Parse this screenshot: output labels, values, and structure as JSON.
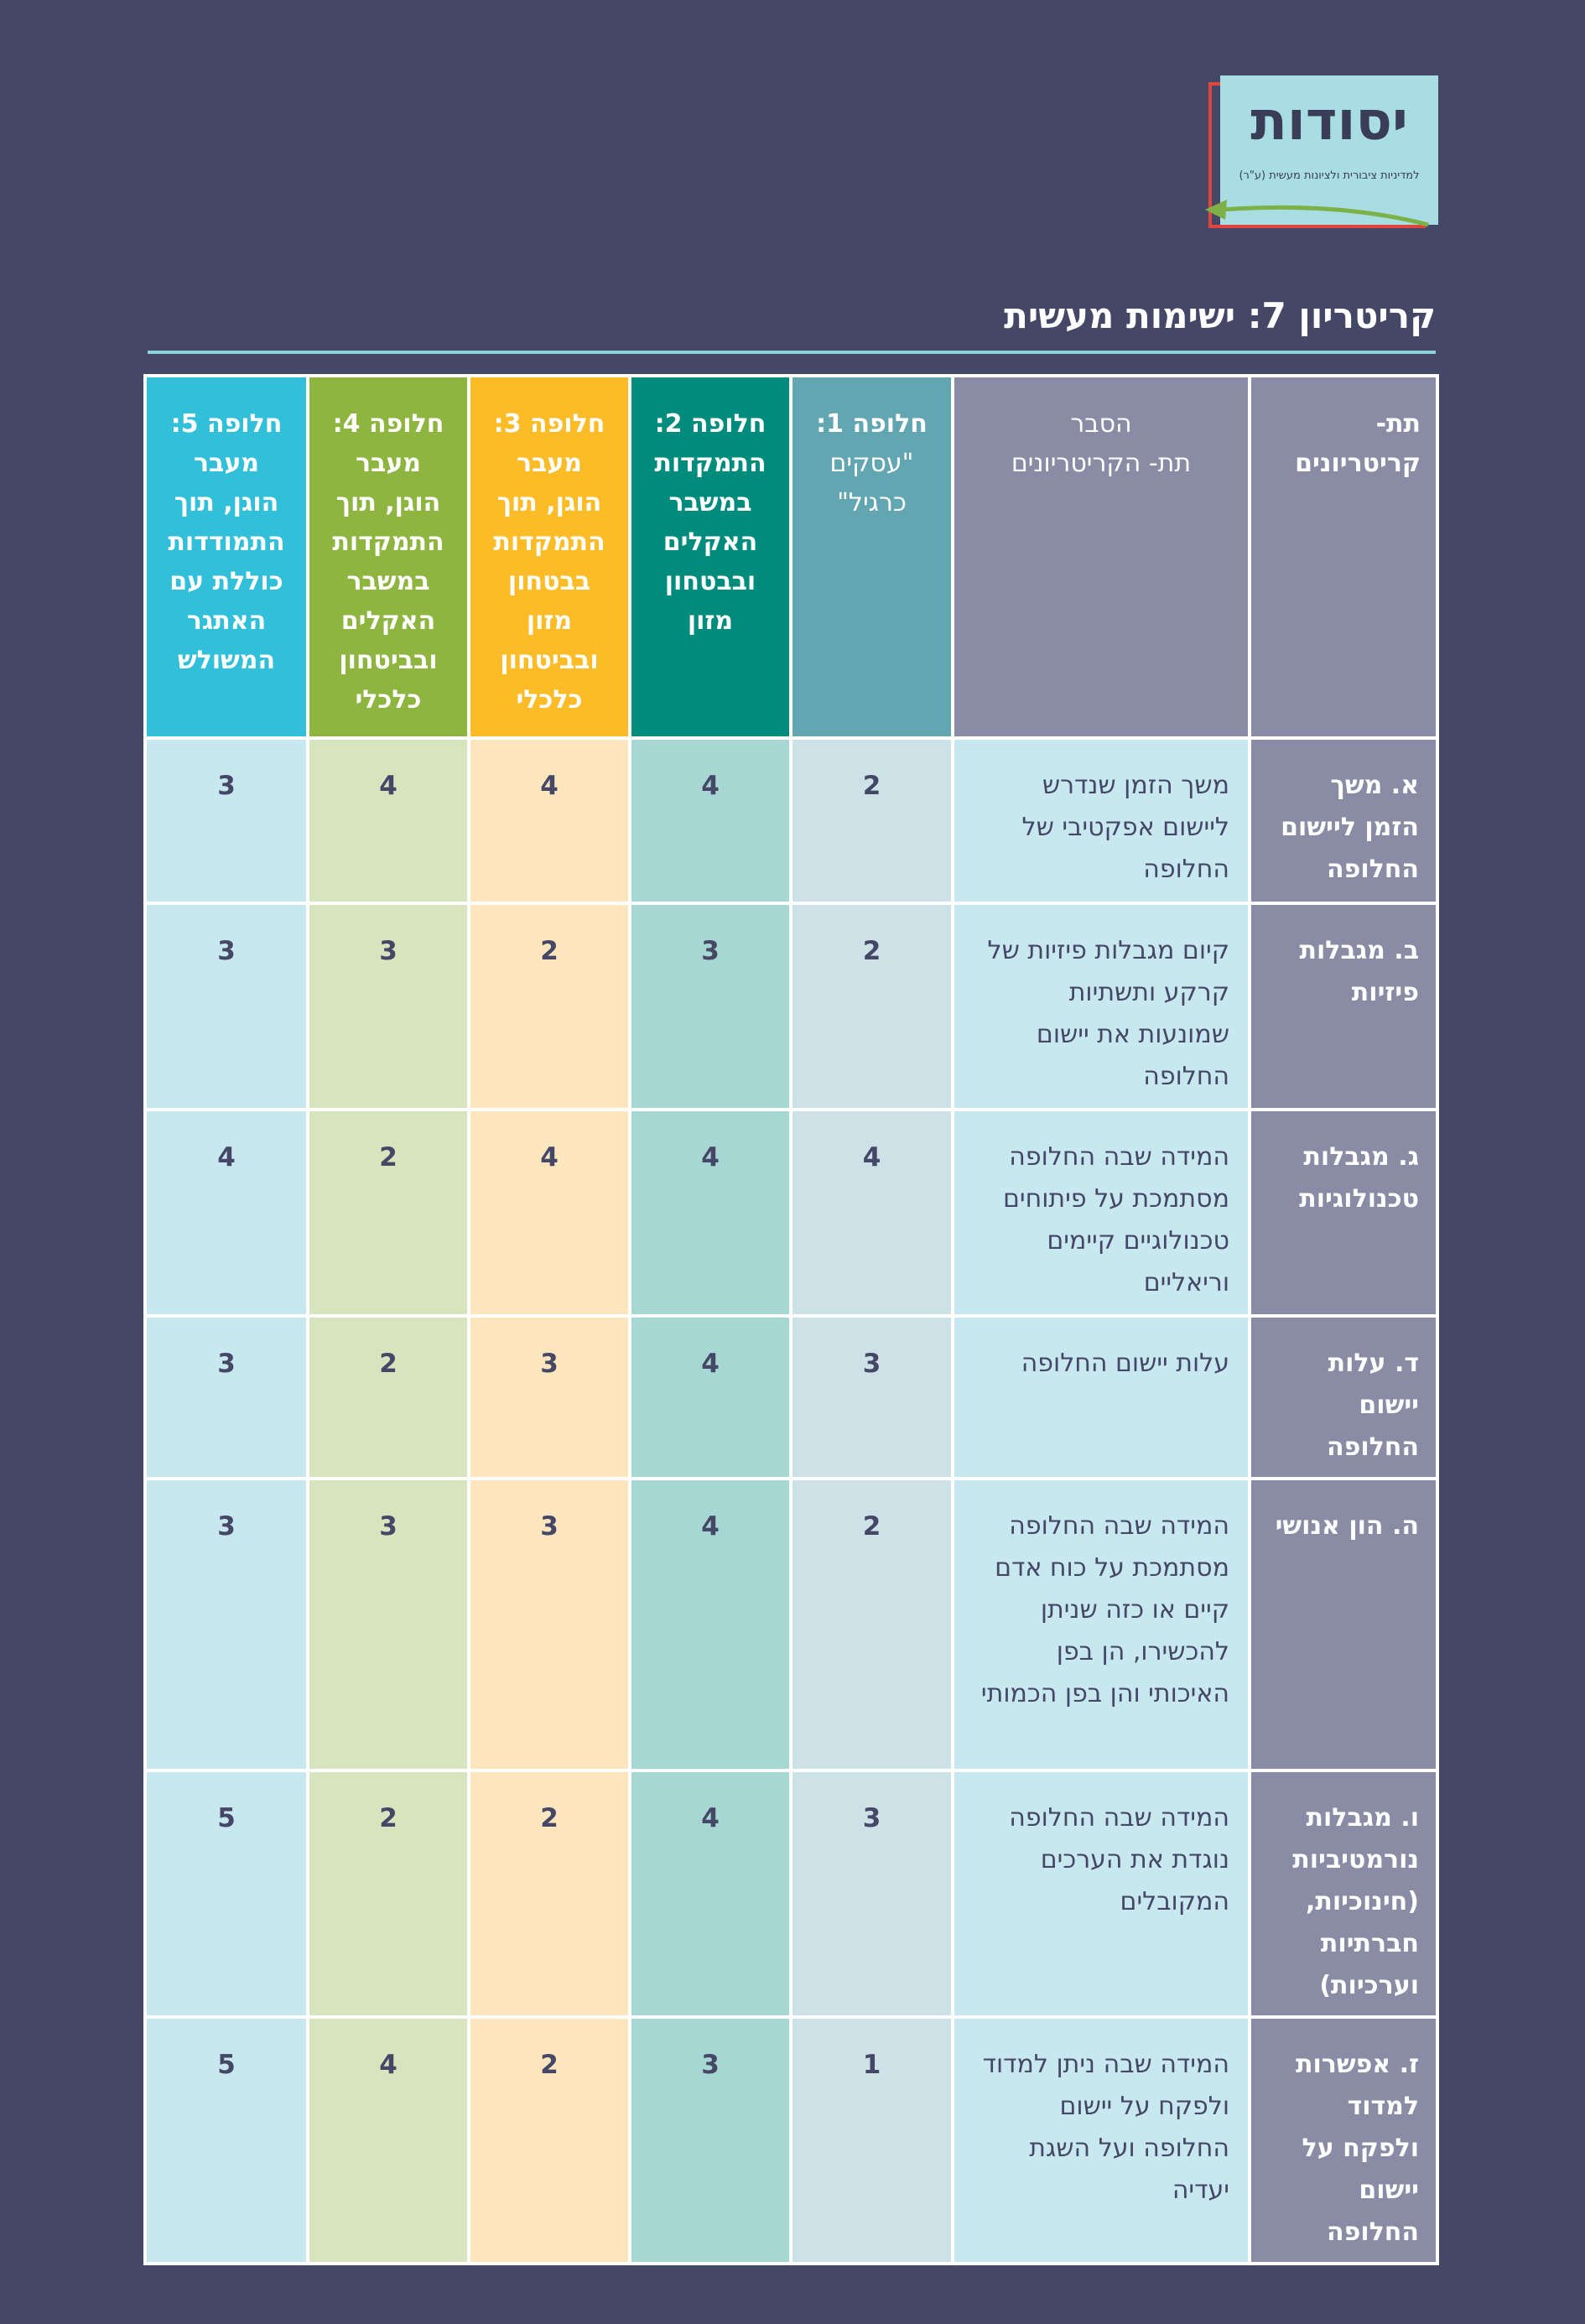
{
  "logo": {
    "title": "יסודות",
    "subtitle": "למדיניות ציבורית ולציונות מעשית (ע\"ר)"
  },
  "page_title": "קריטריון 7: ישימות מעשית",
  "table": {
    "headers": {
      "sub_criteria": "תת- קריטריונים",
      "explanation_line1": "הסבר",
      "explanation_line2": "תת- הקריטריונים",
      "alt1_prefix": "חלופה 1:",
      "alt1_rest": "\"עסקים כרגיל\"",
      "alt2_prefix": "חלופה 2:",
      "alt2_rest": "התמקדות במשבר האקלים ובבטחון מזון",
      "alt3_prefix": "חלופה",
      "alt3_rest": "3: מעבר הוגן, תוך התמקדות בבטחון מזון ובביטחון כלכלי",
      "alt4_prefix": "חלופה",
      "alt4_rest": "4: מעבר הוגן, תוך התמקדות במשבר האקלים ובביטחון כלכלי",
      "alt5_prefix": "חלופה",
      "alt5_rest": "5: מעבר הוגן, תוך התמודדות כוללת עם האתגר המשולש"
    },
    "rows": [
      {
        "label": "א. משך הזמן ליישום החלופה",
        "explanation": "משך הזמן שנדרש ליישום אפקטיבי של החלופה",
        "a1": "2",
        "a2": "4",
        "a3": "4",
        "a4": "4",
        "a5": "3"
      },
      {
        "label": "ב. מגבלות פיזיות",
        "explanation": "קיום מגבלות פיזיות של קרקע ותשתיות שמונעות את יישום החלופה",
        "a1": "2",
        "a2": "3",
        "a3": "2",
        "a4": "3",
        "a5": "3"
      },
      {
        "label": "ג. מגבלות טכנולוגיות",
        "explanation": "המידה שבה החלופה מסתמכת על פיתוחים טכנולוגיים קיימים וריאליים",
        "a1": "4",
        "a2": "4",
        "a3": "4",
        "a4": "2",
        "a5": "4"
      },
      {
        "label": "ד. עלות יישום החלופה",
        "explanation": "עלות יישום החלופה",
        "a1": "3",
        "a2": "4",
        "a3": "3",
        "a4": "2",
        "a5": "3"
      },
      {
        "label": "ה. הון אנושי",
        "explanation": "המידה שבה החלופה מסתמכת על כוח אדם קיים או כזה שניתן להכשירו, הן בפן האיכותי והן בפן הכמותי",
        "a1": "2",
        "a2": "4",
        "a3": "3",
        "a4": "3",
        "a5": "3"
      },
      {
        "label": "ו. מגבלות נורמטיביות (חינוכיות, חברתיות וערכיות)",
        "explanation": "המידה שבה החלופה נוגדת את הערכים המקובלים",
        "a1": "3",
        "a2": "4",
        "a3": "2",
        "a4": "2",
        "a5": "5"
      },
      {
        "label": "ז. אפשרות למדוד ולפקח על יישום החלופה",
        "explanation": "המידה שבה ניתן למדוד ולפקח על יישום החלופה ועל השגת יעדיה",
        "a1": "1",
        "a2": "3",
        "a3": "2",
        "a4": "4",
        "a5": "5"
      }
    ]
  },
  "colors": {
    "background": "#444766",
    "label_column": "#8a8ba4",
    "alt1": "#61a6b1",
    "alt2": "#008c7d",
    "alt3": "#fbbc28",
    "alt4": "#8db540",
    "alt5": "#31bfd9"
  }
}
